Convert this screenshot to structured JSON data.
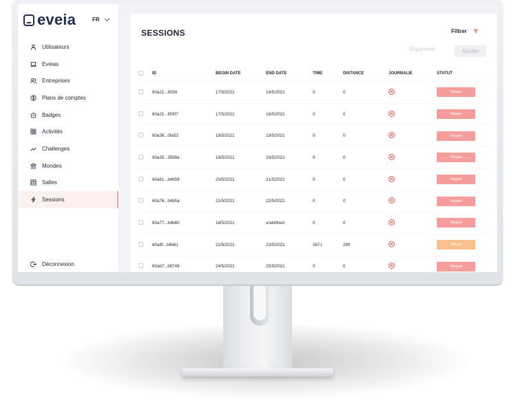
{
  "brand": {
    "name": "eveia"
  },
  "lang": {
    "current": "FR"
  },
  "sidebar": {
    "items": [
      {
        "label": "Utilisateurs",
        "icon": "user-icon"
      },
      {
        "label": "Eveias",
        "icon": "laptop-icon"
      },
      {
        "label": "Entreprises",
        "icon": "people-icon"
      },
      {
        "label": "Plans de comptes",
        "icon": "dollar-icon"
      },
      {
        "label": "Badges",
        "icon": "badge-icon"
      },
      {
        "label": "Activités",
        "icon": "activity-icon"
      },
      {
        "label": "Challenges",
        "icon": "trend-icon"
      },
      {
        "label": "Mondes",
        "icon": "bank-icon"
      },
      {
        "label": "Salles",
        "icon": "room-icon"
      },
      {
        "label": "Sessions",
        "icon": "bolt-icon",
        "active": true
      }
    ],
    "logout": {
      "label": "Déconnexion",
      "icon": "logout-icon"
    }
  },
  "main": {
    "title": "SESSIONS",
    "filter_label": "Filtrer",
    "delete_label": "Supprimer",
    "add_label": "Ajouter",
    "columns": [
      "ID",
      "BEGIN DATE",
      "END DATE",
      "TIME",
      "DISTANCE",
      "JOURNALIE",
      "STATUT"
    ],
    "rows": [
      {
        "id": "60a21...6f2fd",
        "begin": "17/5/2021",
        "end": "18/5/2021",
        "time": "0",
        "distance": "0",
        "status": "Stoppé"
      },
      {
        "id": "60a21...6f307",
        "begin": "17/5/2021",
        "end": "18/5/2021",
        "time": "0",
        "distance": "0",
        "status": "Stoppé"
      },
      {
        "id": "60a36...0fa53",
        "begin": "18/5/2021",
        "end": "19/5/2021",
        "time": "0",
        "distance": "0",
        "status": "Stoppé"
      },
      {
        "id": "60a39...3589a",
        "begin": "18/5/2021",
        "end": "19/5/2021",
        "time": "0",
        "distance": "0",
        "status": "Stoppé"
      },
      {
        "id": "60a61...b4b59",
        "begin": "20/5/2021",
        "end": "21/5/2021",
        "time": "0",
        "distance": "0",
        "status": "Stoppé"
      },
      {
        "id": "60a76...b4b5a",
        "begin": "21/5/2021",
        "end": "22/5/2021",
        "time": "0",
        "distance": "0",
        "status": "Stoppé"
      },
      {
        "id": "60a77...b4b60",
        "begin": "18/5/2021",
        "end": "undefined",
        "time": "0",
        "distance": "0",
        "status": "Stoppé"
      },
      {
        "id": "60a8f...b4b61",
        "begin": "22/5/2021",
        "end": "23/5/2021",
        "time": "2671",
        "distance": "290",
        "status": "Pause"
      },
      {
        "id": "60ab7...b9749",
        "begin": "24/5/2021",
        "end": "25/5/2021",
        "time": "0",
        "distance": "0",
        "status": "Stoppé"
      }
    ]
  },
  "colors": {
    "brand": "#1f2f4b",
    "stopped": "#f59d9a",
    "paused": "#f9c08e",
    "danger": "#e05a55",
    "active_bg": "#fdf1ef"
  }
}
